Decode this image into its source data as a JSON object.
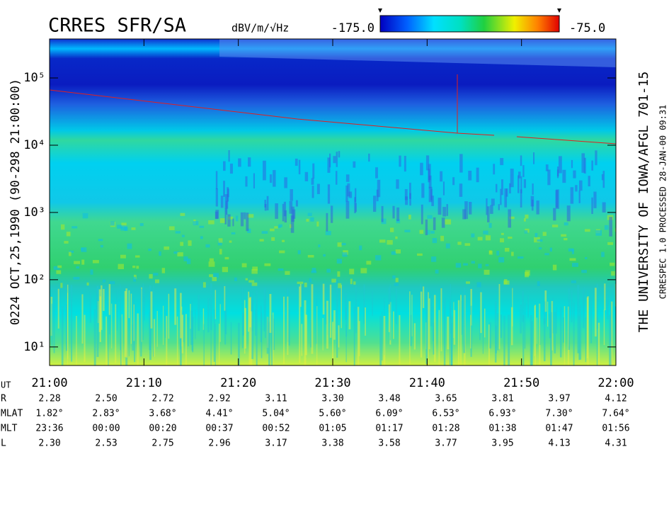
{
  "chart_data": {
    "type": "spectrogram",
    "title": "CRRES SFR/SA",
    "colorbar": {
      "label": "dBV/m/√Hz",
      "clim": [
        -175,
        -75
      ],
      "cticks": [
        {
          "value": -175,
          "label": "-175.0"
        },
        {
          "value": -75,
          "label": "-75.0"
        }
      ]
    },
    "ylabel": "0224   OCT,25,1990   (90-298 21:00:00)",
    "yscale": "log",
    "ylim": [
      5.3,
      380000
    ],
    "yticks": [
      {
        "value": 10,
        "label": "10¹"
      },
      {
        "value": 100,
        "label": "10²"
      },
      {
        "value": 1000,
        "label": "10³"
      },
      {
        "value": 10000,
        "label": "10⁴"
      },
      {
        "value": 100000,
        "label": "10⁵"
      }
    ],
    "x_axis_name": "UT",
    "x_labels": [
      "21:00",
      "21:10",
      "21:20",
      "21:30",
      "21:40",
      "21:50",
      "22:00"
    ],
    "ephemeris": [
      {
        "name": "R",
        "values": [
          "2.28",
          "2.50",
          "2.72",
          "2.92",
          "3.11",
          "3.30",
          "3.48",
          "3.65",
          "3.81",
          "3.97",
          "4.12"
        ]
      },
      {
        "name": "MLAT",
        "values": [
          "1.82°",
          "2.83°",
          "3.68°",
          "4.41°",
          "5.04°",
          "5.60°",
          "6.09°",
          "6.53°",
          "6.93°",
          "7.30°",
          "7.64°"
        ]
      },
      {
        "name": "MLT",
        "values": [
          "23:36",
          "00:00",
          "00:20",
          "00:37",
          "00:52",
          "01:05",
          "01:17",
          "01:28",
          "01:38",
          "01:47",
          "01:56"
        ]
      },
      {
        "name": "L",
        "values": [
          "2.30",
          "2.53",
          "2.75",
          "2.96",
          "3.17",
          "3.38",
          "3.58",
          "3.77",
          "3.95",
          "4.13",
          "4.31"
        ]
      }
    ],
    "right_title": "THE UNIVERSITY OF IOWA/AFGL 701-15",
    "right_note": "CRRESPEC 1.0   PROCESSED 28-JAN-00  09:31"
  }
}
